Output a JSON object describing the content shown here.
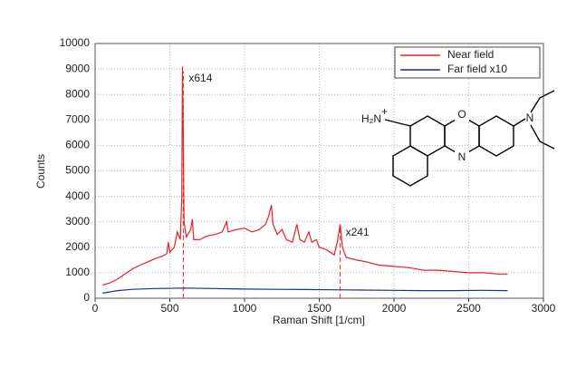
{
  "chart_data": {
    "type": "line",
    "xlabel": "Raman Shift [1/cm]",
    "ylabel": "Counts",
    "xlim": [
      0,
      3000
    ],
    "ylim": [
      0,
      10000
    ],
    "xticks": [
      0,
      500,
      1000,
      1500,
      2000,
      2500,
      3000
    ],
    "yticks": [
      0,
      1000,
      2000,
      3000,
      4000,
      5000,
      6000,
      7000,
      8000,
      9000,
      10000
    ],
    "grid": true,
    "legend": "upper right",
    "series": [
      {
        "name": "Near field",
        "color": "#e8202a",
        "x": [
          50,
          100,
          150,
          200,
          250,
          300,
          350,
          400,
          450,
          480,
          490,
          500,
          530,
          550,
          570,
          580,
          585,
          590,
          595,
          610,
          640,
          650,
          660,
          700,
          750,
          800,
          850,
          880,
          890,
          950,
          1000,
          1050,
          1100,
          1140,
          1160,
          1180,
          1190,
          1220,
          1250,
          1280,
          1320,
          1350,
          1370,
          1400,
          1430,
          1450,
          1480,
          1500,
          1550,
          1600,
          1620,
          1640,
          1655,
          1680,
          1750,
          1800,
          1900,
          2000,
          2100,
          2200,
          2300,
          2400,
          2500,
          2600,
          2700,
          2760
        ],
        "values": [
          520,
          600,
          750,
          950,
          1150,
          1300,
          1420,
          1550,
          1650,
          1750,
          2200,
          1800,
          2000,
          2600,
          2300,
          4000,
          9100,
          6500,
          3000,
          2400,
          2700,
          3100,
          2300,
          2300,
          2450,
          2500,
          2600,
          3000,
          2600,
          2700,
          2750,
          2600,
          2700,
          2900,
          3200,
          3650,
          2900,
          2500,
          2700,
          2300,
          2200,
          2900,
          2300,
          2200,
          2600,
          2200,
          2300,
          2000,
          1900,
          1700,
          2200,
          2900,
          2000,
          1600,
          1500,
          1450,
          1300,
          1250,
          1200,
          1100,
          1100,
          1050,
          1000,
          1000,
          950,
          950
        ]
      },
      {
        "name": "Far field x10",
        "color": "#1c2f8f",
        "x": [
          50,
          150,
          250,
          400,
          600,
          800,
          1000,
          1200,
          1400,
          1600,
          1800,
          2000,
          2200,
          2400,
          2600,
          2760
        ],
        "values": [
          200,
          300,
          350,
          380,
          400,
          380,
          360,
          350,
          340,
          330,
          320,
          310,
          300,
          300,
          310,
          300
        ]
      }
    ],
    "annotations": [
      {
        "text": "x614",
        "x": 590
      },
      {
        "text": "x241",
        "x": 1640
      }
    ],
    "structure": {
      "amine": "H₂N",
      "charge": "+",
      "oxygen": "O",
      "ring_nitrogen": "N",
      "amine_nitrogen": "N"
    }
  }
}
